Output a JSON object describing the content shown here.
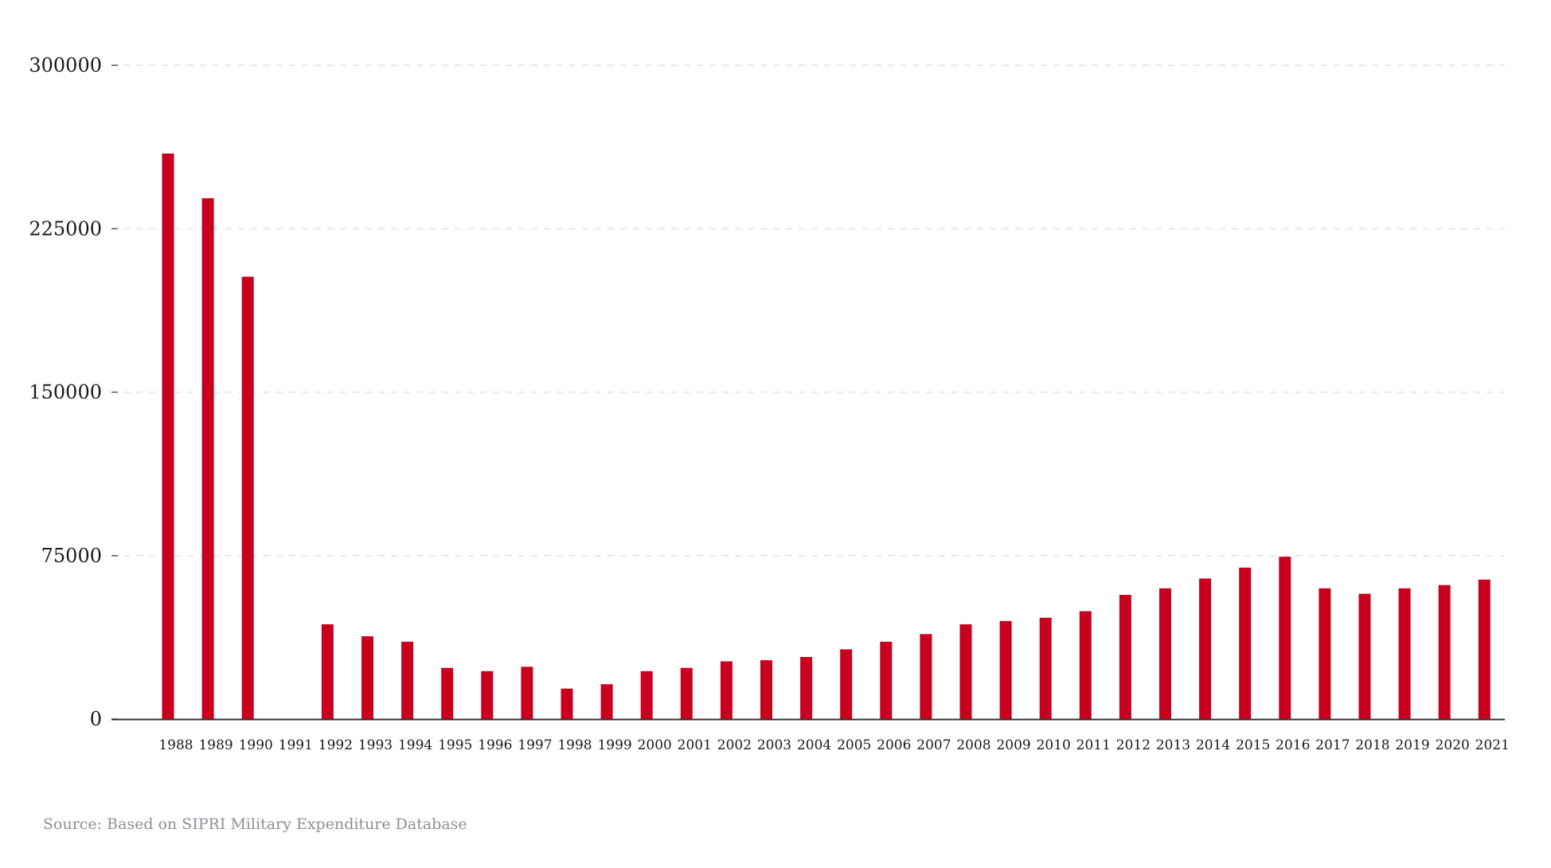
{
  "chart_data": {
    "type": "bar",
    "categories": [
      "1988",
      "1989",
      "1990",
      "1991",
      "1992",
      "1993",
      "1994",
      "1995",
      "1996",
      "1997",
      "1998",
      "1999",
      "2000",
      "2001",
      "2002",
      "2003",
      "2004",
      "2005",
      "2006",
      "2007",
      "2008",
      "2009",
      "2010",
      "2011",
      "2012",
      "2013",
      "2014",
      "2015",
      "2016",
      "2017",
      "2018",
      "2019",
      "2020",
      "2021"
    ],
    "values": [
      259500,
      239000,
      203000,
      0,
      43500,
      38000,
      35500,
      23500,
      22000,
      24000,
      14000,
      16000,
      22000,
      23500,
      26500,
      27000,
      28500,
      32000,
      35500,
      39000,
      43500,
      45000,
      46500,
      49500,
      57000,
      60000,
      64500,
      69500,
      74500,
      60000,
      57500,
      60000,
      61500,
      64000
    ],
    "yticks": [
      0,
      75000,
      150000,
      225000,
      300000
    ],
    "ylim": [
      0,
      300000
    ],
    "grid": true,
    "colors": {
      "bar": "#c8001e",
      "grid": "#e2e2e2",
      "axis": "#333333"
    }
  },
  "source": "Source: Based on SIPRI Military Expenditure Database"
}
